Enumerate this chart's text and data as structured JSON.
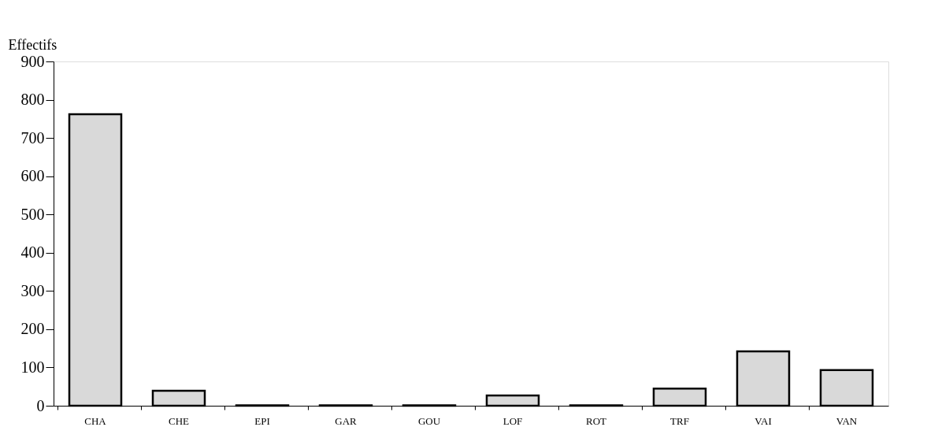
{
  "chart_data": {
    "type": "bar",
    "ylabel": "Effectifs",
    "categories": [
      "CHA",
      "CHE",
      "EPI",
      "GAR",
      "GOU",
      "LOF",
      "ROT",
      "TRF",
      "VAI",
      "VAN"
    ],
    "values": [
      762,
      39,
      1,
      1,
      1,
      27,
      1,
      45,
      142,
      93
    ],
    "color": "#d9d9d9",
    "ylim": [
      0,
      900
    ],
    "yticks": [
      0,
      100,
      200,
      300,
      400,
      500,
      600,
      700,
      800,
      900
    ],
    "grid": false
  }
}
